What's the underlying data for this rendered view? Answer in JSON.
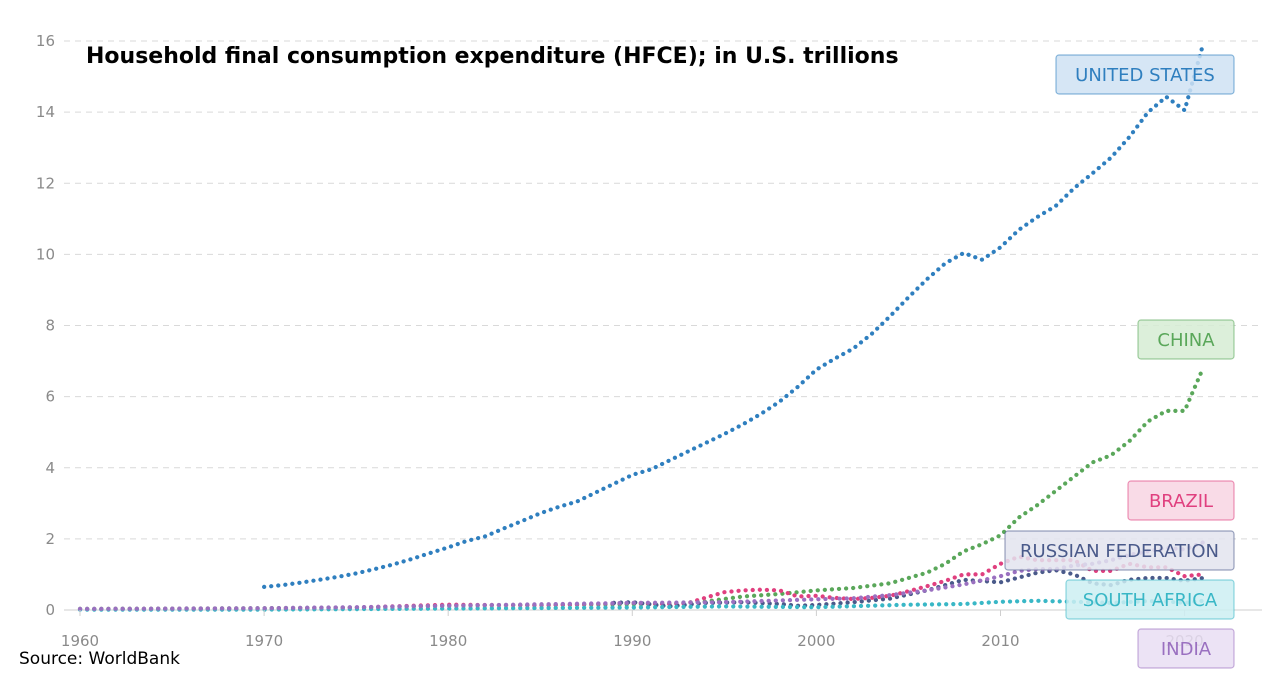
{
  "chart_data": {
    "type": "line",
    "title": "Household final consumption expenditure (HFCE); in U.S. trillions",
    "source": "Source: WorldBank",
    "xlabel": "",
    "ylabel": "",
    "xlim": [
      1960,
      2021
    ],
    "ylim": [
      0,
      16
    ],
    "x_ticks": [
      1960,
      1970,
      1980,
      1990,
      2000,
      2010,
      2020
    ],
    "x_tick_labels": [
      "1960",
      "1970",
      "1980",
      "1990",
      "2000",
      "2010",
      "2020"
    ],
    "y_ticks": [
      0,
      2,
      4,
      6,
      8,
      10,
      12,
      14,
      16
    ],
    "grid": "horizontal dashed",
    "line_style": "dotted",
    "series": [
      {
        "name": "UNITED STATES",
        "color": "#2f7fbf",
        "label_fill": "#cfe2f3",
        "x": [
          1970,
          1971,
          1972,
          1973,
          1974,
          1975,
          1976,
          1977,
          1978,
          1979,
          1980,
          1981,
          1982,
          1983,
          1984,
          1985,
          1986,
          1987,
          1988,
          1989,
          1990,
          1991,
          1992,
          1993,
          1994,
          1995,
          1996,
          1997,
          1998,
          1999,
          2000,
          2001,
          2002,
          2003,
          2004,
          2005,
          2006,
          2007,
          2008,
          2009,
          2010,
          2011,
          2012,
          2013,
          2014,
          2015,
          2016,
          2017,
          2018,
          2019,
          2020,
          2021
        ],
        "values": [
          0.65,
          0.7,
          0.77,
          0.85,
          0.93,
          1.03,
          1.15,
          1.28,
          1.43,
          1.6,
          1.76,
          1.94,
          2.07,
          2.29,
          2.5,
          2.72,
          2.9,
          3.05,
          3.3,
          3.55,
          3.8,
          3.95,
          4.2,
          4.45,
          4.7,
          4.95,
          5.22,
          5.52,
          5.86,
          6.28,
          6.76,
          7.07,
          7.35,
          7.76,
          8.26,
          8.79,
          9.3,
          9.75,
          10.04,
          9.85,
          10.2,
          10.69,
          11.05,
          11.36,
          11.86,
          12.28,
          12.72,
          13.3,
          13.99,
          14.43,
          14.05,
          15.9
        ]
      },
      {
        "name": "CHINA",
        "color": "#5aa75a",
        "label_fill": "#d6ecd3",
        "x": [
          1960,
          1965,
          1970,
          1975,
          1980,
          1985,
          1990,
          1992,
          1994,
          1996,
          1998,
          2000,
          2002,
          2004,
          2006,
          2007,
          2008,
          2009,
          2010,
          2011,
          2012,
          2013,
          2014,
          2015,
          2016,
          2017,
          2018,
          2019,
          2020,
          2021
        ],
        "values": [
          0.03,
          0.04,
          0.05,
          0.07,
          0.12,
          0.14,
          0.16,
          0.18,
          0.24,
          0.38,
          0.45,
          0.55,
          0.62,
          0.75,
          1.05,
          1.3,
          1.65,
          1.85,
          2.1,
          2.6,
          2.95,
          3.35,
          3.75,
          4.15,
          4.35,
          4.75,
          5.3,
          5.6,
          5.6,
          6.8
        ]
      },
      {
        "name": "BRAZIL",
        "color": "#e0407f",
        "label_fill": "#f8d5e3",
        "x": [
          1960,
          1965,
          1970,
          1975,
          1980,
          1985,
          1990,
          1992,
          1993,
          1994,
          1995,
          1996,
          1997,
          1998,
          1999,
          2000,
          2001,
          2002,
          2003,
          2004,
          2005,
          2006,
          2007,
          2008,
          2009,
          2010,
          2011,
          2012,
          2013,
          2014,
          2015,
          2016,
          2017,
          2018,
          2019,
          2020,
          2021
        ],
        "values": [
          0.02,
          0.03,
          0.04,
          0.07,
          0.15,
          0.13,
          0.2,
          0.17,
          0.19,
          0.35,
          0.5,
          0.55,
          0.57,
          0.55,
          0.38,
          0.4,
          0.34,
          0.31,
          0.34,
          0.4,
          0.53,
          0.67,
          0.82,
          1.0,
          1.0,
          1.3,
          1.5,
          1.4,
          1.4,
          1.4,
          1.1,
          1.1,
          1.3,
          1.2,
          1.2,
          0.95,
          1.0
        ]
      },
      {
        "name": "RUSSIAN FEDERATION",
        "color": "#4a5a8a",
        "label_fill": "#e3e4ee",
        "x": [
          1989,
          1990,
          1992,
          1994,
          1996,
          1998,
          1999,
          2000,
          2002,
          2004,
          2006,
          2008,
          2010,
          2012,
          2013,
          2014,
          2015,
          2016,
          2017,
          2018,
          2019,
          2020,
          2021
        ],
        "values": [
          0.2,
          0.22,
          0.1,
          0.2,
          0.22,
          0.17,
          0.12,
          0.14,
          0.22,
          0.32,
          0.55,
          0.85,
          0.78,
          1.05,
          1.12,
          1.0,
          0.75,
          0.7,
          0.85,
          0.9,
          0.9,
          0.82,
          0.9
        ]
      },
      {
        "name": "SOUTH AFRICA",
        "color": "#39b7c6",
        "label_fill": "#cdeff2",
        "x": [
          1960,
          1970,
          1980,
          1990,
          1995,
          2000,
          2005,
          2008,
          2010,
          2012,
          2014,
          2016,
          2018,
          2019,
          2020,
          2021
        ],
        "values": [
          0.01,
          0.01,
          0.04,
          0.07,
          0.1,
          0.08,
          0.15,
          0.17,
          0.23,
          0.26,
          0.23,
          0.2,
          0.25,
          0.24,
          0.2,
          0.26
        ]
      },
      {
        "name": "INDIA",
        "color": "#9a70c0",
        "label_fill": "#e9def3",
        "x": [
          1960,
          1965,
          1970,
          1975,
          1980,
          1985,
          1990,
          1995,
          2000,
          2002,
          2004,
          2006,
          2008,
          2010,
          2011,
          2012,
          2013,
          2014,
          2015,
          2016,
          2017,
          2018,
          2019,
          2020,
          2021
        ],
        "values": [
          0.03,
          0.04,
          0.05,
          0.08,
          0.12,
          0.16,
          0.2,
          0.22,
          0.3,
          0.33,
          0.42,
          0.55,
          0.72,
          0.95,
          1.1,
          1.15,
          1.15,
          1.25,
          1.3,
          1.4,
          1.55,
          1.65,
          1.75,
          1.7,
          1.9
        ]
      }
    ]
  }
}
